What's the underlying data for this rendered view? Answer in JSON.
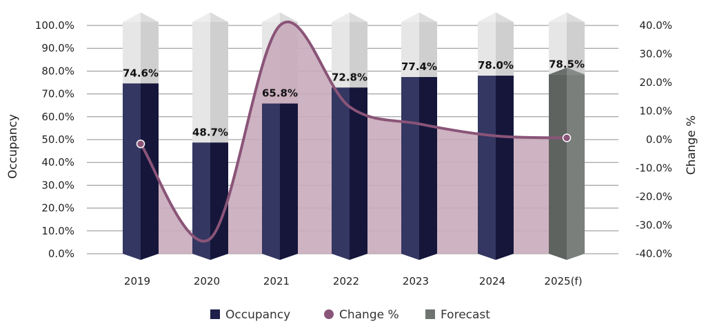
{
  "chart_data": {
    "type": "bar",
    "categories": [
      "2019",
      "2020",
      "2021",
      "2022",
      "2023",
      "2024",
      "2025(f)"
    ],
    "series": [
      {
        "name": "Occupancy",
        "axis": "left",
        "kind": "bar-3d",
        "values": [
          74.6,
          48.7,
          65.8,
          72.8,
          77.4,
          78.0,
          null
        ],
        "color": "#1e1f4a",
        "data_labels": [
          "74.6%",
          "48.7%",
          "65.8%",
          "72.8%",
          "77.4%",
          "78.0%",
          ""
        ]
      },
      {
        "name": "Forecast",
        "axis": "left",
        "kind": "bar-3d",
        "values": [
          null,
          null,
          null,
          null,
          null,
          null,
          78.5
        ],
        "color": "#666b68",
        "data_labels": [
          "",
          "",
          "",
          "",
          "",
          "",
          "78.5%"
        ]
      },
      {
        "name": "Change %",
        "axis": "right",
        "kind": "smooth-line-area",
        "values": [
          -1.5,
          -34.7,
          40.0,
          11.5,
          5.5,
          1.3,
          0.6
        ],
        "color": "#8a5478",
        "fill_color": "#c9abbb"
      }
    ],
    "y_left": {
      "label": "Occupancy",
      "min": 0,
      "max": 100,
      "step": 10,
      "ticks": [
        "0.0%",
        "10.0%",
        "20.0%",
        "30.0%",
        "40.0%",
        "50.0%",
        "60.0%",
        "70.0%",
        "80.0%",
        "90.0%",
        "100.0%"
      ]
    },
    "y_right": {
      "label": "Change %",
      "min": -40,
      "max": 40,
      "step": 10,
      "ticks": [
        "-40.0%",
        "-30.0%",
        "-20.0%",
        "-10.0%",
        "0.0%",
        "10.0%",
        "20.0%",
        "30.0%",
        "40.0%"
      ]
    },
    "bar_background": {
      "value": 100,
      "color_front": "#d9d9d9",
      "color_side": "#c2c2c2"
    },
    "grid": true,
    "legend": {
      "position": "bottom",
      "items": [
        {
          "label": "Occupancy",
          "marker": "square",
          "color": "#1e1f4a"
        },
        {
          "label": "Change %",
          "marker": "circle",
          "color": "#8a5478"
        },
        {
          "label": "Forecast",
          "marker": "square",
          "color": "#6f7470"
        }
      ]
    }
  }
}
